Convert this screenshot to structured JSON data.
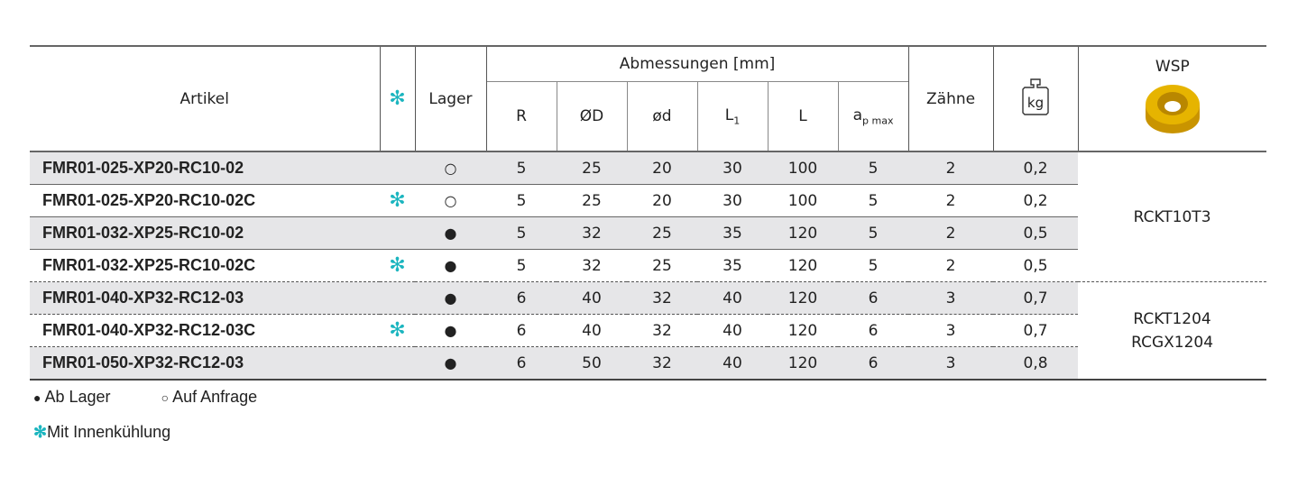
{
  "header": {
    "artikel": "Artikel",
    "cooling_icon": "asterisk-icon",
    "lager": "Lager",
    "abmessungen": "Abmessungen [mm]",
    "dims": [
      "R",
      "ØD",
      "ød",
      "L",
      "L",
      "a"
    ],
    "l1_sub": "1",
    "ap_sub": "p max",
    "zaehne": "Zähne",
    "weight_icon": "weight-kg-icon",
    "weight_icon_text": "kg",
    "wsp": "WSP",
    "insert_icon": "round-insert-image",
    "insert_color": "#e0a800"
  },
  "rows": [
    {
      "artikel": "FMR01-025-XP20-RC10-02",
      "cooling": "",
      "lager": "○",
      "R": "5",
      "D": "25",
      "d": "20",
      "L1": "30",
      "L": "100",
      "ap": "5",
      "z": "2",
      "kg": "0,2"
    },
    {
      "artikel": "FMR01-025-XP20-RC10-02C",
      "cooling": "✻",
      "lager": "○",
      "R": "5",
      "D": "25",
      "d": "20",
      "L1": "30",
      "L": "100",
      "ap": "5",
      "z": "2",
      "kg": "0,2"
    },
    {
      "artikel": "FMR01-032-XP25-RC10-02",
      "cooling": "",
      "lager": "●",
      "R": "5",
      "D": "32",
      "d": "25",
      "L1": "35",
      "L": "120",
      "ap": "5",
      "z": "2",
      "kg": "0,5"
    },
    {
      "artikel": "FMR01-032-XP25-RC10-02C",
      "cooling": "✻",
      "lager": "●",
      "R": "5",
      "D": "32",
      "d": "25",
      "L1": "35",
      "L": "120",
      "ap": "5",
      "z": "2",
      "kg": "0,5"
    },
    {
      "artikel": "FMR01-040-XP32-RC12-03",
      "cooling": "",
      "lager": "●",
      "R": "6",
      "D": "40",
      "d": "32",
      "L1": "40",
      "L": "120",
      "ap": "6",
      "z": "3",
      "kg": "0,7"
    },
    {
      "artikel": "FMR01-040-XP32-RC12-03C",
      "cooling": "✻",
      "lager": "●",
      "R": "6",
      "D": "40",
      "d": "32",
      "L1": "40",
      "L": "120",
      "ap": "6",
      "z": "3",
      "kg": "0,7"
    },
    {
      "artikel": "FMR01-050-XP32-RC12-03",
      "cooling": "",
      "lager": "●",
      "R": "6",
      "D": "50",
      "d": "32",
      "L1": "40",
      "L": "120",
      "ap": "6",
      "z": "3",
      "kg": "0,8"
    }
  ],
  "wsp_groups": [
    {
      "lines": [
        "RCKT10T3"
      ]
    },
    {
      "lines": [
        "RCKT1204",
        "RCGX1204"
      ]
    }
  ],
  "legend": {
    "in_stock_symbol": "●",
    "in_stock": "Ab Lager",
    "on_request_symbol": "○",
    "on_request": "Auf Anfrage",
    "cooling_symbol": "✻",
    "cooling": "Mit Innenkühlung"
  },
  "colors": {
    "accent": "#1bb5bf",
    "row_shade": "#e6e6e8"
  }
}
